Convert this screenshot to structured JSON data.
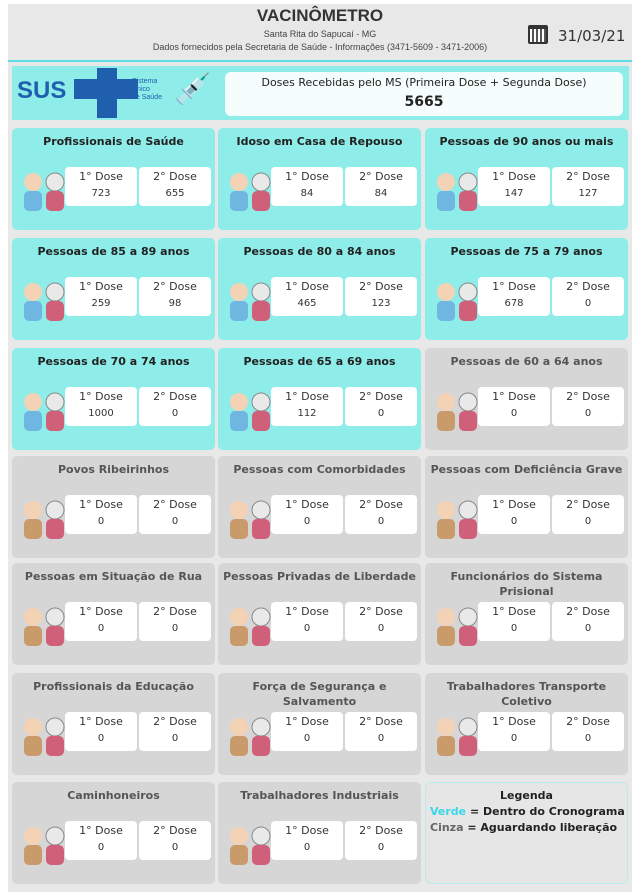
{
  "header": {
    "title": "VACINÔMETRO",
    "location": "Santa Rita do Sapucaí - MG",
    "source": "Dados fornecidos pela Secretaria de Saúde - Informações (3471-5609 - 3471-2006)",
    "date": "31/03/21"
  },
  "banner": {
    "logo": "SUS",
    "logo_sub": [
      "Sistema",
      "Único",
      "de Saúde"
    ],
    "doses_label": "Doses Recebidas pelo MS (Primeira Dose + Segunda Dose)",
    "doses_value": "5665"
  },
  "colors": {
    "green": "#8eede9",
    "grey": "#d6d6d6",
    "accent": "#3ad7e8"
  },
  "dose_labels": {
    "first": "1° Dose",
    "second": "2° Dose"
  },
  "cards": [
    {
      "title": "Profissionais de Saúde",
      "status": "green",
      "icon": "health-worker-icon",
      "first": "723",
      "second": "655"
    },
    {
      "title": "Idoso em Casa de Repouso",
      "status": "green",
      "icon": "elderly-care-icon",
      "first": "84",
      "second": "84"
    },
    {
      "title": "Pessoas de 90 anos ou mais",
      "status": "green",
      "icon": "elderly-couple-icon",
      "first": "147",
      "second": "127"
    },
    {
      "title": "Pessoas de 85 a 89 anos",
      "status": "green",
      "icon": "elderly-couple-icon",
      "first": "259",
      "second": "98"
    },
    {
      "title": "Pessoas de 80 a 84 anos",
      "status": "green",
      "icon": "elderly-couple-icon",
      "first": "465",
      "second": "123"
    },
    {
      "title": "Pessoas de 75 a 79 anos",
      "status": "green",
      "icon": "elderly-couple-icon",
      "first": "678",
      "second": "0"
    },
    {
      "title": "Pessoas de 70 a 74 anos",
      "status": "green",
      "icon": "elderly-couple-icon",
      "first": "1000",
      "second": "0"
    },
    {
      "title": "Pessoas de 65 a 69 anos",
      "status": "green",
      "icon": "elderly-couple-icon",
      "first": "112",
      "second": "0"
    },
    {
      "title": "Pessoas de 60 a 64 anos",
      "status": "grey",
      "icon": "elderly-couple-icon",
      "first": "0",
      "second": "0"
    },
    {
      "title": "Povos Ribeirinhos",
      "status": "grey",
      "icon": "river-icon",
      "first": "0",
      "second": "0"
    },
    {
      "title": "Pessoas com Comorbidades",
      "status": "grey",
      "icon": "medical-record-icon",
      "first": "0",
      "second": "0"
    },
    {
      "title": "Pessoas com Deficiência Grave",
      "status": "grey",
      "icon": "wheelchair-icon",
      "first": "0",
      "second": "0"
    },
    {
      "title": "Pessoas em Situação de Rua",
      "status": "grey",
      "icon": "homeless-icon",
      "first": "0",
      "second": "0"
    },
    {
      "title": "Pessoas Privadas de Liberdade",
      "status": "grey",
      "icon": "handcuffs-icon",
      "first": "0",
      "second": "0"
    },
    {
      "title": "Funcionários do Sistema Prisional",
      "status": "grey",
      "icon": "police-officer-icon",
      "first": "0",
      "second": "0"
    },
    {
      "title": "Profissionais da Educação",
      "status": "grey",
      "icon": "teacher-icon",
      "first": "0",
      "second": "0"
    },
    {
      "title": "Força de Segurança e Salvamento",
      "status": "grey",
      "icon": "safety-vest-icon",
      "first": "0",
      "second": "0"
    },
    {
      "title": "Trabalhadores Transporte Coletivo",
      "status": "grey",
      "icon": "bus-driver-icon",
      "first": "0",
      "second": "0"
    },
    {
      "title": "Caminhoneiros",
      "status": "grey",
      "icon": "truck-driver-icon",
      "first": "0",
      "second": "0"
    },
    {
      "title": "Trabalhadores Industriais",
      "status": "grey",
      "icon": "industrial-worker-icon",
      "first": "0",
      "second": "0"
    }
  ],
  "legend": {
    "title": "Legenda",
    "green_word": "Verde",
    "green_text": " = Dentro do Cronograma",
    "grey_word": "Cinza",
    "grey_text": " = Aguardando liberação"
  }
}
